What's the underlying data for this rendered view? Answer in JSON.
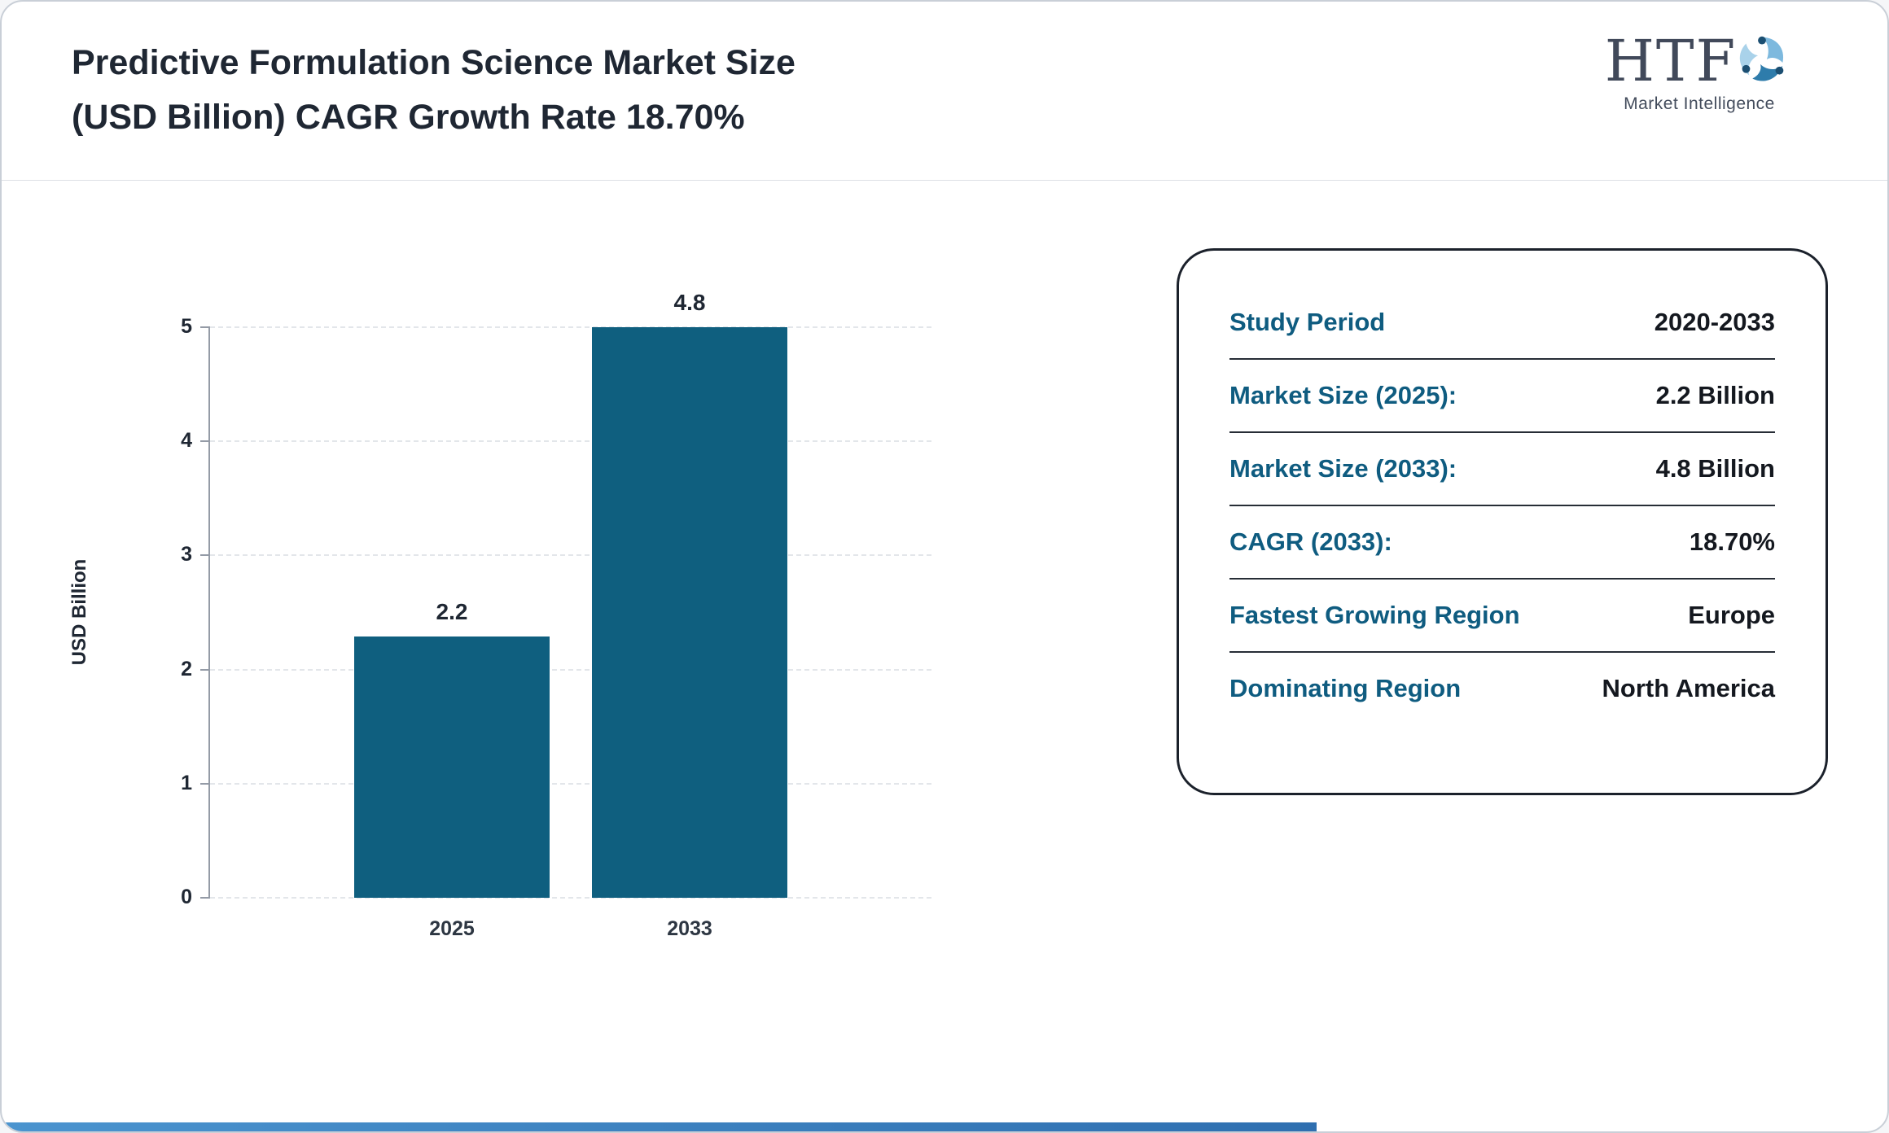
{
  "header": {
    "title_line1": "Predictive Formulation Science Market Size",
    "title_line2": "(USD Billion) CAGR Growth Rate 18.70%",
    "logo": {
      "text": "HTF",
      "subtext": "Market Intelligence",
      "icon": "swirl-people-icon"
    }
  },
  "chart_data": {
    "type": "bar",
    "categories": [
      "2025",
      "2033"
    ],
    "values": [
      2.2,
      4.8
    ],
    "value_labels": [
      "2.2",
      "4.8"
    ],
    "title": "Predictive Formulation Science Market Size (USD Billion) CAGR Growth Rate 18.70%",
    "xlabel": "",
    "ylabel": "USD Billion",
    "yticks": [
      0,
      1,
      2,
      3,
      4,
      5
    ],
    "ylim": [
      0,
      5
    ],
    "grid": "horizontal-dashed",
    "legend": "none",
    "bar_color": "#0f5f7f"
  },
  "panel": {
    "rows": [
      {
        "label": "Study Period",
        "value": "2020-2033"
      },
      {
        "label": "Market Size (2025):",
        "value": "2.2 Billion"
      },
      {
        "label": "Market Size (2033):",
        "value": "4.8 Billion"
      },
      {
        "label": "CAGR (2033):",
        "value": "18.70%"
      },
      {
        "label": "Fastest Growing Region",
        "value": "Europe"
      },
      {
        "label": "Dominating Region",
        "value": "North America"
      }
    ]
  },
  "colors": {
    "bar_teal": "#0f5f7f",
    "panel_label_blue": "#0f5c80",
    "title_dark": "#1f2733",
    "footer_blue": "#3f86c6"
  }
}
